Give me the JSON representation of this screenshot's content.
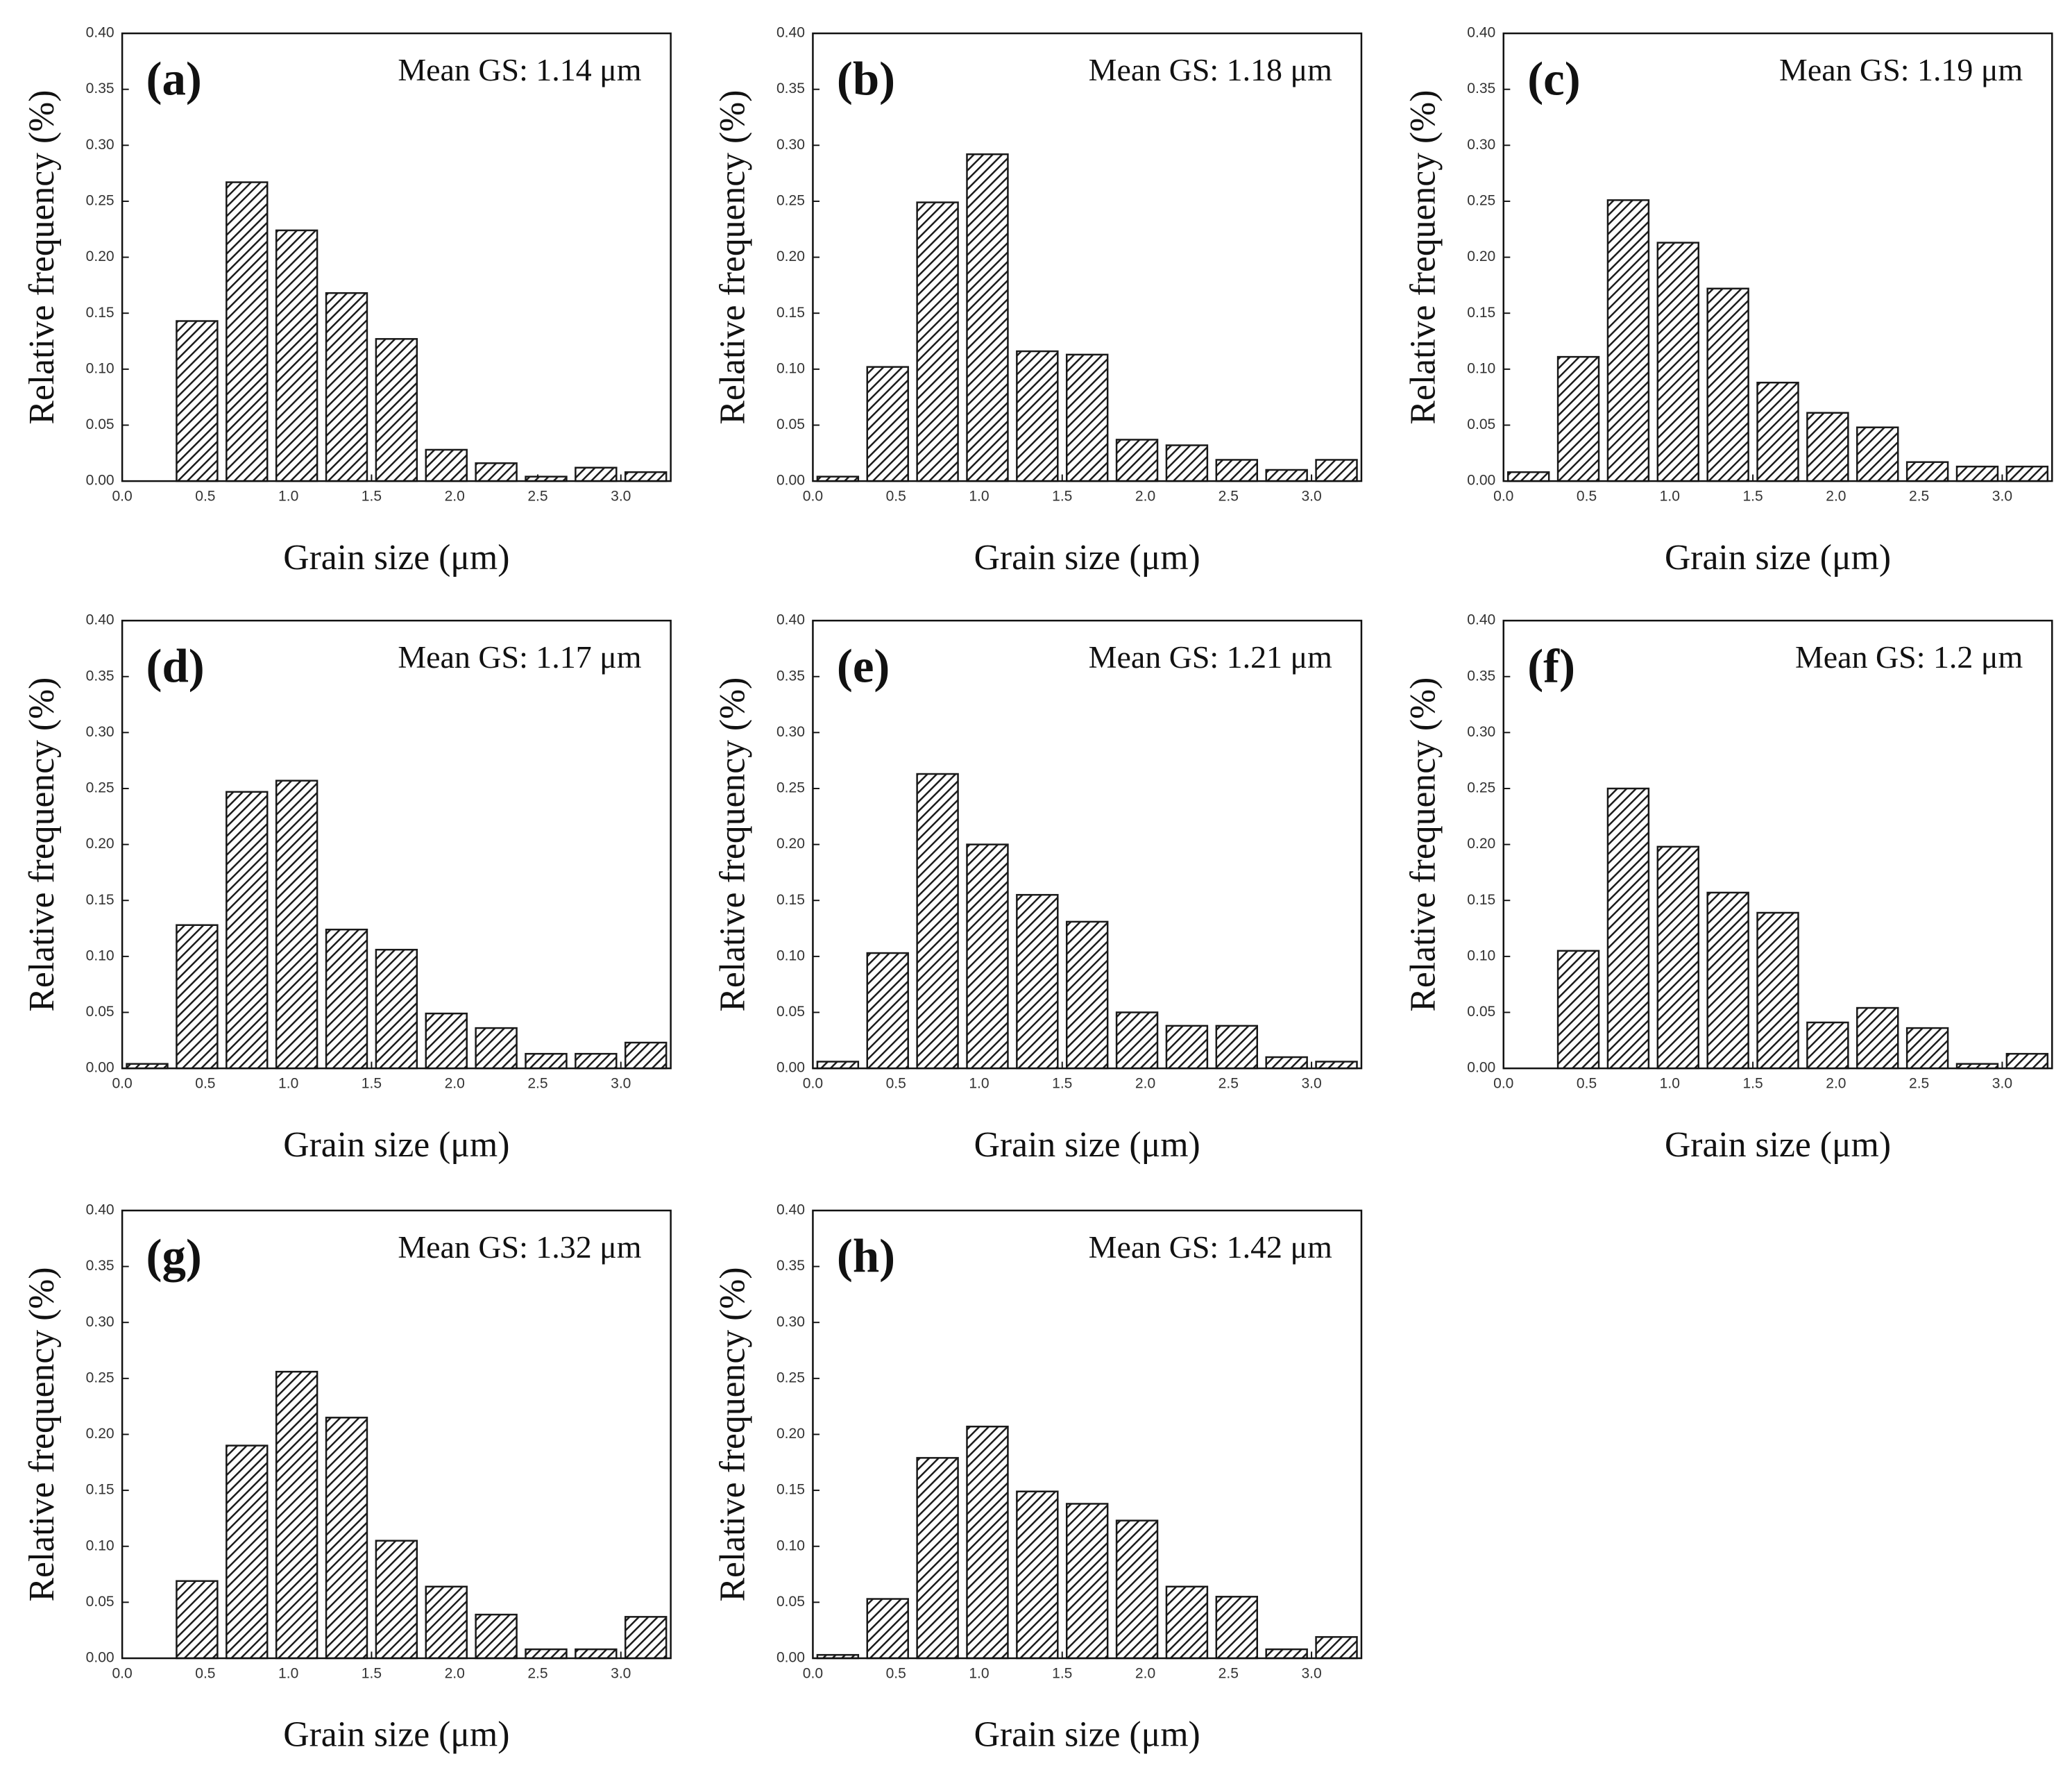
{
  "chart_data": [
    {
      "type": "histogram",
      "panel_label": "(a)",
      "annotation": "Mean GS: 1.14 μm",
      "xlabel": "Grain size (μm)",
      "ylabel": "Relative frequency (%)",
      "color": "#1a1a1a",
      "bins": [
        0,
        0.3,
        0.6,
        0.9,
        1.2,
        1.5,
        1.8,
        2.1,
        2.4,
        2.7,
        3.0,
        3.3
      ],
      "values": [
        0,
        0.143,
        0.267,
        0.224,
        0.168,
        0.127,
        0.028,
        0.016,
        0.004,
        0.012,
        0.008
      ],
      "xlim": [
        0,
        3.3
      ],
      "ylim": [
        0,
        0.4
      ],
      "xticks": [
        {
          "value": 0,
          "label": "0.0"
        },
        {
          "value": 0.5,
          "label": "0.5"
        },
        {
          "value": 1,
          "label": "1.0"
        },
        {
          "value": 1.5,
          "label": "1.5"
        },
        {
          "value": 2,
          "label": "2.0"
        },
        {
          "value": 2.5,
          "label": "2.5"
        },
        {
          "value": 3,
          "label": "3.0"
        }
      ],
      "yticks": [
        {
          "value": 0,
          "label": "0.00"
        },
        {
          "value": 0.05,
          "label": "0.05"
        },
        {
          "value": 0.1,
          "label": "0.10"
        },
        {
          "value": 0.15,
          "label": "0.15"
        },
        {
          "value": 0.2,
          "label": "0.20"
        },
        {
          "value": 0.25,
          "label": "0.25"
        },
        {
          "value": 0.3,
          "label": "0.30"
        },
        {
          "value": 0.35,
          "label": "0.35"
        },
        {
          "value": 0.4,
          "label": "0.40"
        }
      ]
    },
    {
      "type": "histogram",
      "panel_label": "(b)",
      "annotation": "Mean GS: 1.18 μm",
      "xlabel": "Grain size (μm)",
      "ylabel": "Relative frequency (%)",
      "color": "#1a1a1a",
      "bins": [
        0,
        0.3,
        0.6,
        0.9,
        1.2,
        1.5,
        1.8,
        2.1,
        2.4,
        2.7,
        3.0,
        3.3
      ],
      "values": [
        0.004,
        0.102,
        0.249,
        0.292,
        0.116,
        0.113,
        0.037,
        0.032,
        0.019,
        0.01,
        0.019
      ],
      "xlim": [
        0,
        3.3
      ],
      "ylim": [
        0,
        0.4
      ],
      "xticks": [
        {
          "value": 0,
          "label": "0.0"
        },
        {
          "value": 0.5,
          "label": "0.5"
        },
        {
          "value": 1,
          "label": "1.0"
        },
        {
          "value": 1.5,
          "label": "1.5"
        },
        {
          "value": 2,
          "label": "2.0"
        },
        {
          "value": 2.5,
          "label": "2.5"
        },
        {
          "value": 3,
          "label": "3.0"
        }
      ],
      "yticks": [
        {
          "value": 0,
          "label": "0.00"
        },
        {
          "value": 0.05,
          "label": "0.05"
        },
        {
          "value": 0.1,
          "label": "0.10"
        },
        {
          "value": 0.15,
          "label": "0.15"
        },
        {
          "value": 0.2,
          "label": "0.20"
        },
        {
          "value": 0.25,
          "label": "0.25"
        },
        {
          "value": 0.3,
          "label": "0.30"
        },
        {
          "value": 0.35,
          "label": "0.35"
        },
        {
          "value": 0.4,
          "label": "0.40"
        }
      ]
    },
    {
      "type": "histogram",
      "panel_label": "(c)",
      "annotation": "Mean GS: 1.19 μm",
      "xlabel": "Grain size (μm)",
      "ylabel": "Relative frequency (%)",
      "color": "#1a1a1a",
      "bins": [
        0,
        0.3,
        0.6,
        0.9,
        1.2,
        1.5,
        1.8,
        2.1,
        2.4,
        2.7,
        3.0,
        3.3
      ],
      "values": [
        0.008,
        0.111,
        0.251,
        0.213,
        0.172,
        0.088,
        0.061,
        0.048,
        0.017,
        0.013,
        0.013
      ],
      "xlim": [
        0,
        3.3
      ],
      "ylim": [
        0,
        0.4
      ],
      "xticks": [
        {
          "value": 0,
          "label": "0.0"
        },
        {
          "value": 0.5,
          "label": "0.5"
        },
        {
          "value": 1,
          "label": "1.0"
        },
        {
          "value": 1.5,
          "label": "1.5"
        },
        {
          "value": 2,
          "label": "2.0"
        },
        {
          "value": 2.5,
          "label": "2.5"
        },
        {
          "value": 3,
          "label": "3.0"
        }
      ],
      "yticks": [
        {
          "value": 0,
          "label": "0.00"
        },
        {
          "value": 0.05,
          "label": "0.05"
        },
        {
          "value": 0.1,
          "label": "0.10"
        },
        {
          "value": 0.15,
          "label": "0.15"
        },
        {
          "value": 0.2,
          "label": "0.20"
        },
        {
          "value": 0.25,
          "label": "0.25"
        },
        {
          "value": 0.3,
          "label": "0.30"
        },
        {
          "value": 0.35,
          "label": "0.35"
        },
        {
          "value": 0.4,
          "label": "0.40"
        }
      ]
    },
    {
      "type": "histogram",
      "panel_label": "(d)",
      "annotation": "Mean GS: 1.17 μm",
      "xlabel": "Grain size (μm)",
      "ylabel": "Relative frequency (%)",
      "color": "#1a1a1a",
      "bins": [
        0,
        0.3,
        0.6,
        0.9,
        1.2,
        1.5,
        1.8,
        2.1,
        2.4,
        2.7,
        3.0,
        3.3
      ],
      "values": [
        0.004,
        0.128,
        0.247,
        0.257,
        0.124,
        0.106,
        0.049,
        0.036,
        0.013,
        0.013,
        0.023
      ],
      "xlim": [
        0,
        3.3
      ],
      "ylim": [
        0,
        0.4
      ],
      "xticks": [
        {
          "value": 0,
          "label": "0.0"
        },
        {
          "value": 0.5,
          "label": "0.5"
        },
        {
          "value": 1,
          "label": "1.0"
        },
        {
          "value": 1.5,
          "label": "1.5"
        },
        {
          "value": 2,
          "label": "2.0"
        },
        {
          "value": 2.5,
          "label": "2.5"
        },
        {
          "value": 3,
          "label": "3.0"
        }
      ],
      "yticks": [
        {
          "value": 0,
          "label": "0.00"
        },
        {
          "value": 0.05,
          "label": "0.05"
        },
        {
          "value": 0.1,
          "label": "0.10"
        },
        {
          "value": 0.15,
          "label": "0.15"
        },
        {
          "value": 0.2,
          "label": "0.20"
        },
        {
          "value": 0.25,
          "label": "0.25"
        },
        {
          "value": 0.3,
          "label": "0.30"
        },
        {
          "value": 0.35,
          "label": "0.35"
        },
        {
          "value": 0.4,
          "label": "0.40"
        }
      ]
    },
    {
      "type": "histogram",
      "panel_label": "(e)",
      "annotation": "Mean GS: 1.21 μm",
      "xlabel": "Grain size (μm)",
      "ylabel": "Relative frequency (%)",
      "color": "#1a1a1a",
      "bins": [
        0,
        0.3,
        0.6,
        0.9,
        1.2,
        1.5,
        1.8,
        2.1,
        2.4,
        2.7,
        3.0,
        3.3
      ],
      "values": [
        0.006,
        0.103,
        0.263,
        0.2,
        0.155,
        0.131,
        0.05,
        0.038,
        0.038,
        0.01,
        0.006
      ],
      "xlim": [
        0,
        3.3
      ],
      "ylim": [
        0,
        0.4
      ],
      "xticks": [
        {
          "value": 0,
          "label": "0.0"
        },
        {
          "value": 0.5,
          "label": "0.5"
        },
        {
          "value": 1,
          "label": "1.0"
        },
        {
          "value": 1.5,
          "label": "1.5"
        },
        {
          "value": 2,
          "label": "2.0"
        },
        {
          "value": 2.5,
          "label": "2.5"
        },
        {
          "value": 3,
          "label": "3.0"
        }
      ],
      "yticks": [
        {
          "value": 0,
          "label": "0.00"
        },
        {
          "value": 0.05,
          "label": "0.05"
        },
        {
          "value": 0.1,
          "label": "0.10"
        },
        {
          "value": 0.15,
          "label": "0.15"
        },
        {
          "value": 0.2,
          "label": "0.20"
        },
        {
          "value": 0.25,
          "label": "0.25"
        },
        {
          "value": 0.3,
          "label": "0.30"
        },
        {
          "value": 0.35,
          "label": "0.35"
        },
        {
          "value": 0.4,
          "label": "0.40"
        }
      ]
    },
    {
      "type": "histogram",
      "panel_label": "(f)",
      "annotation": "Mean GS: 1.2 μm",
      "xlabel": "Grain size (μm)",
      "ylabel": "Relative frequency (%)",
      "color": "#1a1a1a",
      "bins": [
        0,
        0.3,
        0.6,
        0.9,
        1.2,
        1.5,
        1.8,
        2.1,
        2.4,
        2.7,
        3.0,
        3.3
      ],
      "values": [
        0,
        0.105,
        0.25,
        0.198,
        0.157,
        0.139,
        0.041,
        0.054,
        0.036,
        0.004,
        0.013
      ],
      "xlim": [
        0,
        3.3
      ],
      "ylim": [
        0,
        0.4
      ],
      "xticks": [
        {
          "value": 0,
          "label": "0.0"
        },
        {
          "value": 0.5,
          "label": "0.5"
        },
        {
          "value": 1,
          "label": "1.0"
        },
        {
          "value": 1.5,
          "label": "1.5"
        },
        {
          "value": 2,
          "label": "2.0"
        },
        {
          "value": 2.5,
          "label": "2.5"
        },
        {
          "value": 3,
          "label": "3.0"
        }
      ],
      "yticks": [
        {
          "value": 0,
          "label": "0.00"
        },
        {
          "value": 0.05,
          "label": "0.05"
        },
        {
          "value": 0.1,
          "label": "0.10"
        },
        {
          "value": 0.15,
          "label": "0.15"
        },
        {
          "value": 0.2,
          "label": "0.20"
        },
        {
          "value": 0.25,
          "label": "0.25"
        },
        {
          "value": 0.3,
          "label": "0.30"
        },
        {
          "value": 0.35,
          "label": "0.35"
        },
        {
          "value": 0.4,
          "label": "0.40"
        }
      ]
    },
    {
      "type": "histogram",
      "panel_label": "(g)",
      "annotation": "Mean GS: 1.32 μm",
      "xlabel": "Grain size (μm)",
      "ylabel": "Relative frequency (%)",
      "color": "#1a1a1a",
      "bins": [
        0,
        0.3,
        0.6,
        0.9,
        1.2,
        1.5,
        1.8,
        2.1,
        2.4,
        2.7,
        3.0,
        3.3
      ],
      "values": [
        0,
        0.069,
        0.19,
        0.256,
        0.215,
        0.105,
        0.064,
        0.039,
        0.008,
        0.008,
        0.037
      ],
      "xlim": [
        0,
        3.3
      ],
      "ylim": [
        0,
        0.4
      ],
      "xticks": [
        {
          "value": 0,
          "label": "0.0"
        },
        {
          "value": 0.5,
          "label": "0.5"
        },
        {
          "value": 1,
          "label": "1.0"
        },
        {
          "value": 1.5,
          "label": "1.5"
        },
        {
          "value": 2,
          "label": "2.0"
        },
        {
          "value": 2.5,
          "label": "2.5"
        },
        {
          "value": 3,
          "label": "3.0"
        }
      ],
      "yticks": [
        {
          "value": 0,
          "label": "0.00"
        },
        {
          "value": 0.05,
          "label": "0.05"
        },
        {
          "value": 0.1,
          "label": "0.10"
        },
        {
          "value": 0.15,
          "label": "0.15"
        },
        {
          "value": 0.2,
          "label": "0.20"
        },
        {
          "value": 0.25,
          "label": "0.25"
        },
        {
          "value": 0.3,
          "label": "0.30"
        },
        {
          "value": 0.35,
          "label": "0.35"
        },
        {
          "value": 0.4,
          "label": "0.40"
        }
      ]
    },
    {
      "type": "histogram",
      "panel_label": "(h)",
      "annotation": "Mean GS: 1.42 μm",
      "xlabel": "Grain size (μm)",
      "ylabel": "Relative frequency (%)",
      "color": "#1a1a1a",
      "bins": [
        0,
        0.3,
        0.6,
        0.9,
        1.2,
        1.5,
        1.8,
        2.1,
        2.4,
        2.7,
        3.0,
        3.3
      ],
      "values": [
        0.003,
        0.053,
        0.179,
        0.207,
        0.149,
        0.138,
        0.123,
        0.064,
        0.055,
        0.008,
        0.019
      ],
      "xlim": [
        0,
        3.3
      ],
      "ylim": [
        0,
        0.4
      ],
      "xticks": [
        {
          "value": 0,
          "label": "0.0"
        },
        {
          "value": 0.5,
          "label": "0.5"
        },
        {
          "value": 1,
          "label": "1.0"
        },
        {
          "value": 1.5,
          "label": "1.5"
        },
        {
          "value": 2,
          "label": "2.0"
        },
        {
          "value": 2.5,
          "label": "2.5"
        },
        {
          "value": 3,
          "label": "3.0"
        }
      ],
      "yticks": [
        {
          "value": 0,
          "label": "0.00"
        },
        {
          "value": 0.05,
          "label": "0.05"
        },
        {
          "value": 0.1,
          "label": "0.10"
        },
        {
          "value": 0.15,
          "label": "0.15"
        },
        {
          "value": 0.2,
          "label": "0.20"
        },
        {
          "value": 0.25,
          "label": "0.25"
        },
        {
          "value": 0.3,
          "label": "0.30"
        },
        {
          "value": 0.35,
          "label": "0.35"
        },
        {
          "value": 0.4,
          "label": "0.40"
        }
      ]
    }
  ]
}
